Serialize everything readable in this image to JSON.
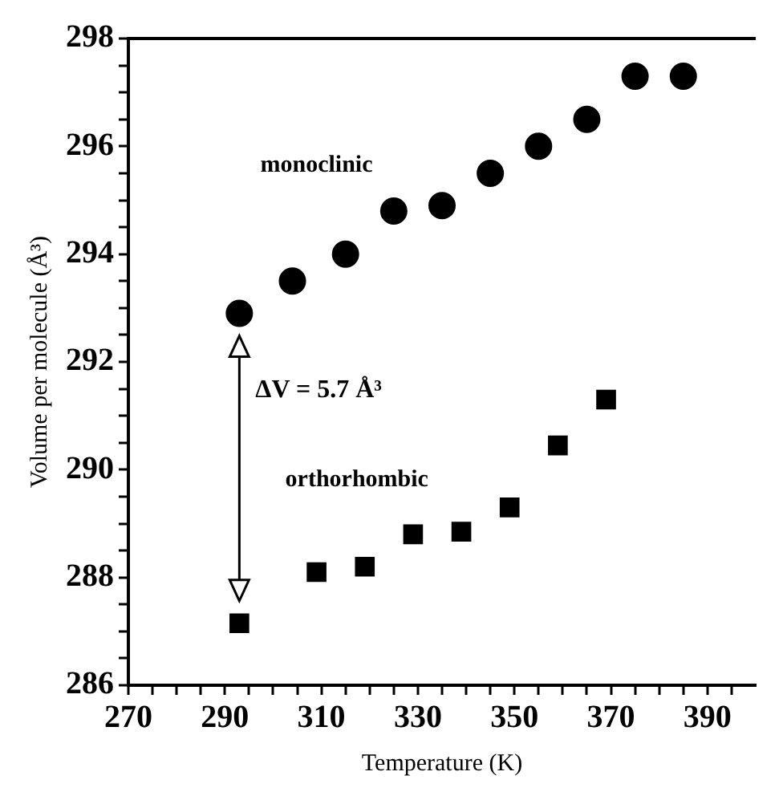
{
  "chart_data": {
    "type": "scatter",
    "xlabel": "Temperature (K)",
    "ylabel": "Volume per molecule (Å³)",
    "xlim": [
      270,
      400
    ],
    "xticks": [
      270,
      {
        "value": 275,
        "label": null
      },
      {
        "value": 280,
        "label": null
      },
      {
        "value": 285,
        "label": null
      },
      290,
      {
        "value": 295,
        "label": null
      },
      {
        "value": 300,
        "label": null
      },
      {
        "value": 305,
        "label": null
      },
      310,
      {
        "value": 315,
        "label": null
      },
      {
        "value": 320,
        "label": null
      },
      {
        "value": 325,
        "label": null
      },
      330,
      {
        "value": 335,
        "label": null
      },
      {
        "value": 340,
        "label": null
      },
      {
        "value": 345,
        "label": null
      },
      350,
      {
        "value": 355,
        "label": null
      },
      {
        "value": 360,
        "label": null
      },
      {
        "value": 365,
        "label": null
      },
      370,
      {
        "value": 375,
        "label": null
      },
      {
        "value": 380,
        "label": null
      },
      {
        "value": 385,
        "label": null
      },
      390,
      {
        "value": 395,
        "label": null
      }
    ],
    "ylim": [
      286,
      298
    ],
    "yticks": [
      286,
      {
        "value": 286.5,
        "label": null
      },
      {
        "value": 287,
        "label": null
      },
      {
        "value": 287.5,
        "label": null
      },
      288,
      {
        "value": 288.5,
        "label": null
      },
      {
        "value": 289,
        "label": null
      },
      {
        "value": 289.5,
        "label": null
      },
      290,
      {
        "value": 290.5,
        "label": null
      },
      {
        "value": 291,
        "label": null
      },
      {
        "value": 291.5,
        "label": null
      },
      292,
      {
        "value": 292.5,
        "label": null
      },
      {
        "value": 293,
        "label": null
      },
      {
        "value": 293.5,
        "label": null
      },
      294,
      {
        "value": 294.5,
        "label": null
      },
      {
        "value": 295,
        "label": null
      },
      {
        "value": 295.5,
        "label": null
      },
      296,
      {
        "value": 296.5,
        "label": null
      },
      {
        "value": 297,
        "label": null
      },
      {
        "value": 297.5,
        "label": null
      },
      298
    ],
    "grid": false,
    "legend": false,
    "series": [
      {
        "name": "monoclinic",
        "color": "#000000",
        "marker": "circle",
        "x": [
          293,
          304,
          315,
          325,
          335,
          345,
          355,
          365,
          375,
          385
        ],
        "values": [
          292.9,
          293.5,
          294.0,
          294.8,
          294.9,
          295.5,
          296.0,
          296.5,
          297.3,
          297.3
        ]
      },
      {
        "name": "orthorhombic",
        "color": "#000000",
        "marker": "square",
        "x": [
          293,
          309,
          319,
          329,
          339,
          349,
          359,
          369
        ],
        "values": [
          287.15,
          288.1,
          288.2,
          288.8,
          288.85,
          289.3,
          290.45,
          291.3
        ]
      }
    ],
    "annotations": [
      "ΔV = 5.7 Å³"
    ]
  }
}
